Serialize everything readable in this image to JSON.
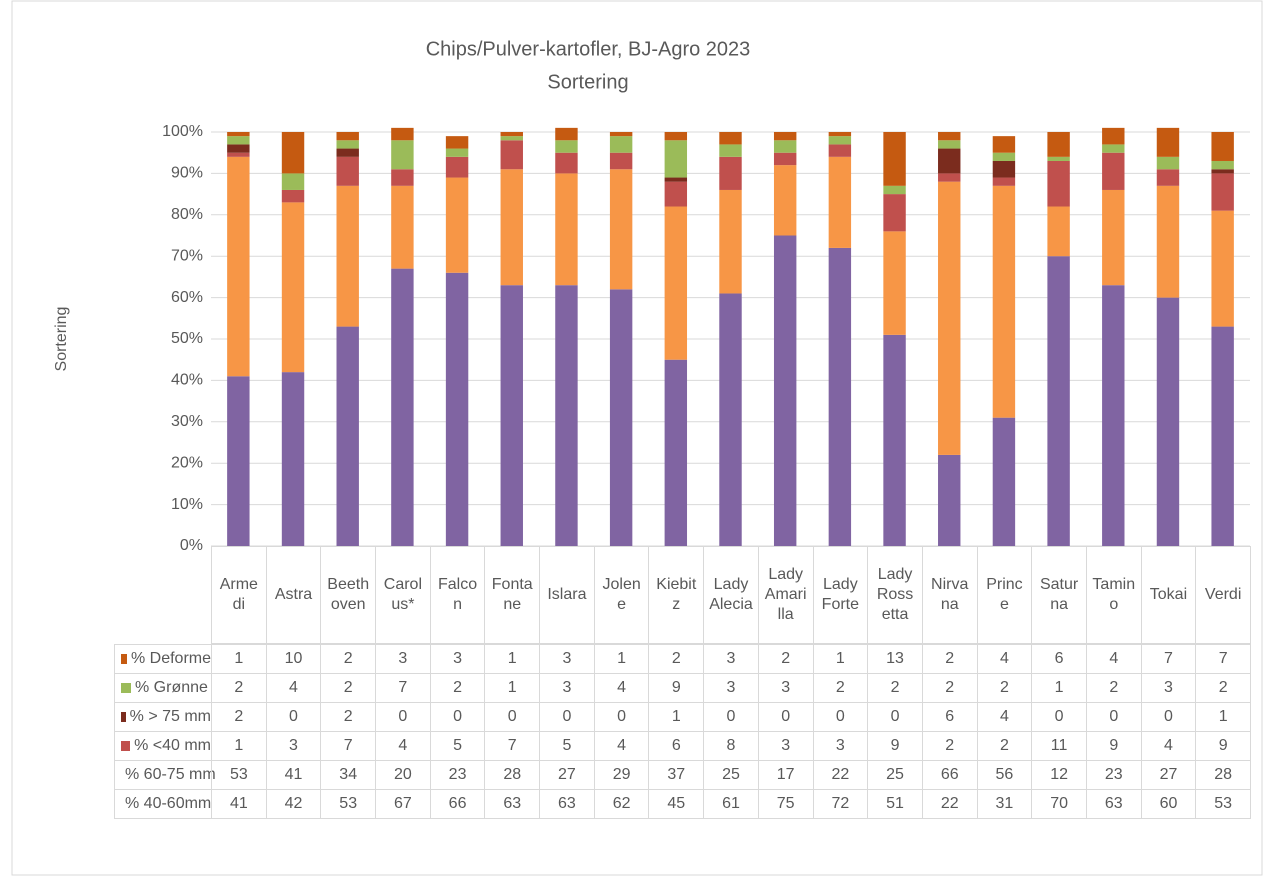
{
  "chart_data": {
    "type": "stacked_bar",
    "title": "Chips/Pulver-kartofler, BJ-Agro 2023",
    "subtitle": "Sortering",
    "y_label": "Sortering",
    "categories": [
      "Armedi",
      "Astra",
      "Beethoven",
      "Carolus*",
      "Falcon",
      "Fontane",
      "Islara",
      "Jolene",
      "Kiebitz",
      "Lady Alecia",
      "Lady Amarilla",
      "Lady Forte",
      "Lady Rossetta",
      "Nirvana",
      "Prince",
      "Saturna",
      "Tamino",
      "Tokai",
      "Verdi"
    ],
    "series": [
      {
        "name": "% 40-60mm",
        "color": "#8064a2",
        "values": [
          41,
          42,
          53,
          67,
          66,
          63,
          63,
          62,
          45,
          61,
          75,
          72,
          51,
          22,
          31,
          70,
          63,
          60,
          53
        ]
      },
      {
        "name": "% 60-75 mm",
        "color": "#f79646",
        "values": [
          53,
          41,
          34,
          20,
          23,
          28,
          27,
          29,
          37,
          25,
          17,
          22,
          25,
          66,
          56,
          12,
          23,
          27,
          28
        ]
      },
      {
        "name": "% <40 mm",
        "color": "#c0504d",
        "values": [
          1,
          3,
          7,
          4,
          5,
          7,
          5,
          4,
          6,
          8,
          3,
          3,
          9,
          2,
          2,
          11,
          9,
          4,
          9
        ]
      },
      {
        "name": "% > 75 mm",
        "color": "#7b2c1e",
        "values": [
          2,
          0,
          2,
          0,
          0,
          0,
          0,
          0,
          1,
          0,
          0,
          0,
          0,
          6,
          4,
          0,
          0,
          0,
          1
        ]
      },
      {
        "name": "% Grønne",
        "color": "#9bbb59",
        "values": [
          2,
          4,
          2,
          7,
          2,
          1,
          3,
          4,
          9,
          3,
          3,
          2,
          2,
          2,
          2,
          1,
          2,
          3,
          2
        ]
      },
      {
        "name": "% Deforme",
        "color": "#c55a11",
        "values": [
          1,
          10,
          2,
          3,
          3,
          1,
          3,
          1,
          2,
          3,
          2,
          1,
          13,
          2,
          4,
          6,
          4,
          7,
          7
        ]
      }
    ],
    "ylim": [
      0,
      100
    ],
    "yticks": [
      {
        "value": 0,
        "label": "0%"
      },
      {
        "value": 10,
        "label": "10%"
      },
      {
        "value": 20,
        "label": "20%"
      },
      {
        "value": 30,
        "label": "30%"
      },
      {
        "value": 40,
        "label": "40%"
      },
      {
        "value": 50,
        "label": "50%"
      },
      {
        "value": 60,
        "label": "60%"
      },
      {
        "value": 70,
        "label": "70%"
      },
      {
        "value": 80,
        "label": "80%"
      },
      {
        "value": 90,
        "label": "90%"
      },
      {
        "value": 100,
        "label": "100%"
      }
    ],
    "grid": true
  }
}
